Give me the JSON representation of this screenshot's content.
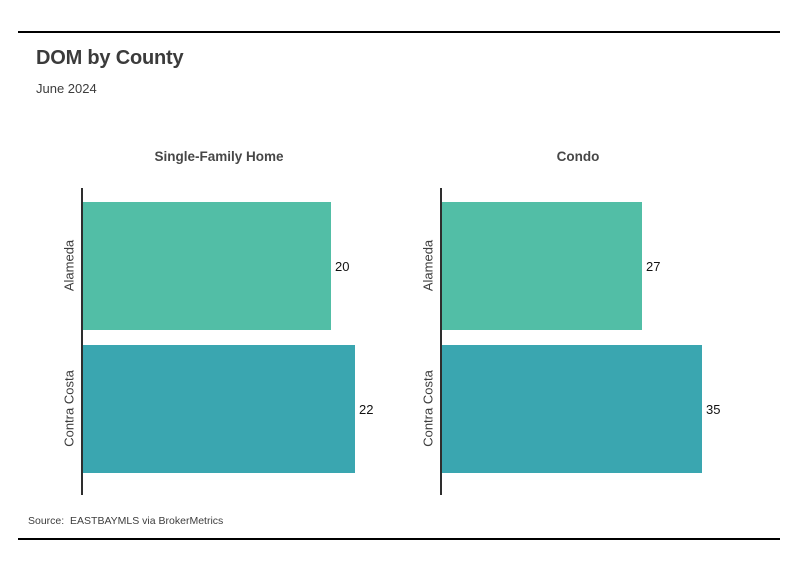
{
  "header": {
    "title": "DOM by County",
    "subtitle": "June 2024"
  },
  "footer": {
    "source_label": "Source:  EASTBAYMLS via BrokerMetrics"
  },
  "colors": {
    "alameda_bar": "#52BEA6",
    "contra_costa_bar": "#3AA6B0",
    "axis_line": "#2e2e2e",
    "rule": "#000000",
    "title_text": "#3b3b3b",
    "value_text": "#121212"
  },
  "chart_data": [
    {
      "type": "bar",
      "orientation": "horizontal",
      "title": "Single-Family Home",
      "categories": [
        "Alameda",
        "Contra Costa"
      ],
      "values": [
        20,
        22
      ],
      "xlim": [
        0,
        24
      ],
      "bar_colors": [
        "#52BEA6",
        "#3AA6B0"
      ],
      "grid": false,
      "legend": "none",
      "value_labels_position": "outside-end"
    },
    {
      "type": "bar",
      "orientation": "horizontal",
      "title": "Condo",
      "categories": [
        "Alameda",
        "Contra Costa"
      ],
      "values": [
        27,
        35
      ],
      "xlim": [
        0,
        40
      ],
      "bar_colors": [
        "#52BEA6",
        "#3AA6B0"
      ],
      "grid": false,
      "legend": "none",
      "value_labels_position": "outside-end"
    }
  ]
}
